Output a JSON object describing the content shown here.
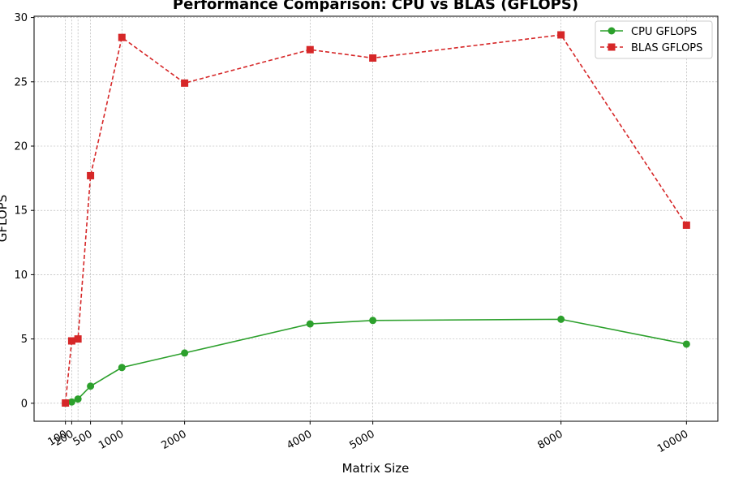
{
  "chart_data": {
    "type": "line",
    "title": "Performance Comparison: CPU vs BLAS (GFLOPS)",
    "xlabel": "Matrix Size",
    "ylabel": "GFLOPS",
    "x": [
      100,
      200,
      300,
      500,
      1000,
      2000,
      4000,
      5000,
      8000,
      10000
    ],
    "xticks": [
      100,
      200,
      500,
      1000,
      2000,
      4000,
      5000,
      8000,
      10000
    ],
    "xtick_labels": [
      "100",
      "200",
      "500",
      "1000",
      "2000",
      "4000",
      "5000",
      "8000",
      "10000"
    ],
    "yticks": [
      0,
      5,
      10,
      15,
      20,
      25,
      30
    ],
    "xlim": [
      -400,
      10500
    ],
    "ylim": [
      -1.4,
      30.1
    ],
    "grid": true,
    "legend_position": "top-right",
    "series": [
      {
        "name": "CPU GFLOPS",
        "color": "#2ca02c",
        "marker": "circle",
        "linestyle": "solid",
        "values": [
          0.0,
          0.1,
          0.33,
          1.33,
          2.78,
          3.91,
          6.17,
          6.44,
          6.53,
          4.6
        ]
      },
      {
        "name": "BLAS GFLOPS",
        "color": "#d62728",
        "marker": "square",
        "linestyle": "dashed",
        "values": [
          0.02,
          4.85,
          5.0,
          17.7,
          28.45,
          24.9,
          27.5,
          26.85,
          28.65,
          13.85
        ]
      }
    ]
  }
}
